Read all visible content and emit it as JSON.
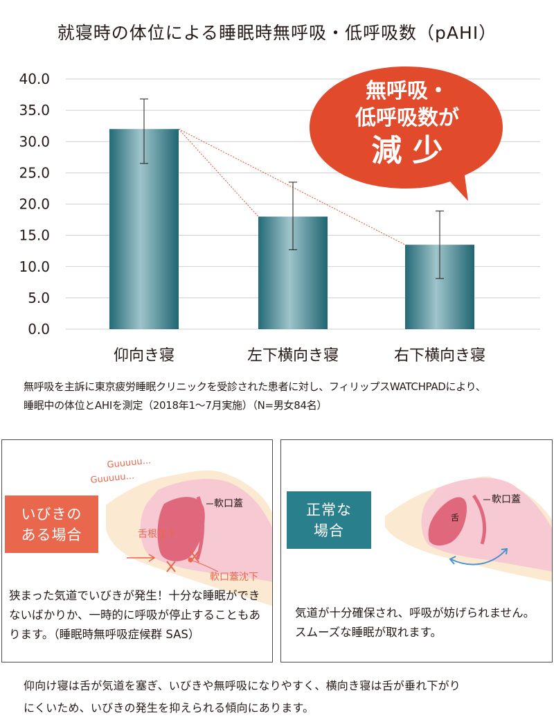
{
  "chart_data": {
    "type": "bar",
    "title": "就寝時の体位による睡眠時無呼吸・低呼吸数（pAHI）",
    "categories": [
      "仰向き寝",
      "左下横向き寝",
      "右下横向き寝"
    ],
    "values": [
      32.0,
      18.0,
      13.5
    ],
    "error_low": [
      26.5,
      12.7,
      8.1
    ],
    "error_high": [
      36.8,
      23.5,
      18.9
    ],
    "ylim": [
      0,
      40
    ],
    "yticks": [
      "0.0",
      "5.0",
      "10.0",
      "15.0",
      "20.0",
      "25.0",
      "30.0",
      "35.0",
      "40.0"
    ],
    "grid": true,
    "bar_color": "#2e7d8a",
    "callout": {
      "line1": "無呼吸・",
      "line2": "低呼吸数が",
      "line3": "減 少",
      "color": "#e24a2c"
    }
  },
  "note": {
    "line1": "無呼吸を主訴に東京疲労睡眠クリニックを受診された患者に対し、フィリップスWATCHPADにより、",
    "line2": "睡眠中の体位とAHIを測定（2018年1～7月実施）（N=男女84名）"
  },
  "panels": {
    "snoring": {
      "label_line1": "いびきの",
      "label_line2": "ある場合",
      "sound1": "Guuuuu...",
      "sound2": "Guuuuu...",
      "soft_palate": "軟口蓋",
      "tongue_root_drop": "舌根沈下",
      "soft_palate_drop": "軟口蓋沈下",
      "description": "狭まった気道でいびきが発生！十分な睡眠ができないばかりか、一時的に呼吸が停止することもあります。（睡眠時無呼吸症候群 SAS）"
    },
    "normal": {
      "label_line1": "正常な",
      "label_line2": "場合",
      "soft_palate": "軟口蓋",
      "tongue": "舌",
      "description": "気道が十分確保され、呼吸が妨げられません。スムーズな睡眠が取れます。"
    }
  },
  "footer": {
    "line1": "仰向け寝は舌が気道を塞ぎ、いびきや無呼吸になりやすく、横向き寝は舌が垂れ下がり",
    "line2": "にくいため、いびきの発生を抑えられる傾向にあります。"
  },
  "colors": {
    "snoring_accent": "#e8674d",
    "normal_accent": "#2a7f8c",
    "skin": "#fbe9d2",
    "tissue": "#f6c9d3",
    "tongue": "#e0687c"
  }
}
